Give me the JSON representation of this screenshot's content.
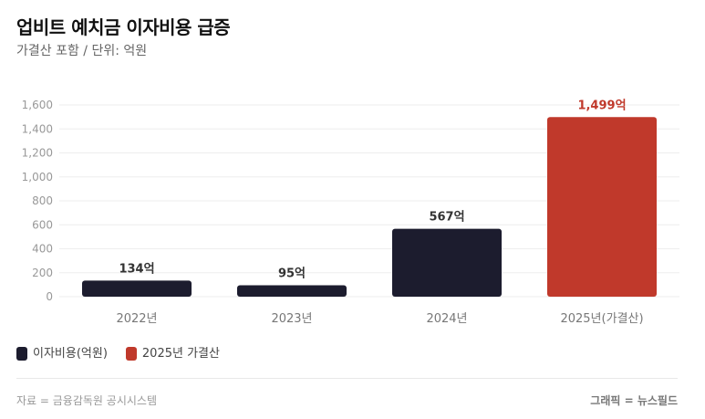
{
  "title": "업비트 예치금 이자비용 급증",
  "subtitle": "가결산 포함 / 단위: 억원",
  "chart_data": {
    "type": "bar",
    "categories": [
      "2022년",
      "2023년",
      "2024년",
      "2025년(가결산)"
    ],
    "values": [
      134,
      95,
      567,
      1499
    ],
    "data_labels": [
      "134억",
      "95억",
      "567억",
      "1,499억"
    ],
    "colors": [
      "#1c1c2e",
      "#1c1c2e",
      "#1c1c2e",
      "#c0392b"
    ],
    "ylim": [
      0,
      1600
    ],
    "yticks": [
      0,
      200,
      400,
      600,
      800,
      1000,
      1200,
      1400,
      1600
    ],
    "ytick_labels": [
      "0",
      "200",
      "400",
      "600",
      "800",
      "1,000",
      "1,200",
      "1,400",
      "1,600"
    ],
    "grid": true,
    "legend": [
      {
        "label": "이자비용(억원)",
        "color": "#1c1c2e"
      },
      {
        "label": "2025년 가결산",
        "color": "#c0392b"
      }
    ],
    "legend_placement": "bottom-left"
  },
  "footer": {
    "source": "자료 = 금융감독원 공시시스템",
    "credit": "그래픽 = 뉴스필드"
  }
}
